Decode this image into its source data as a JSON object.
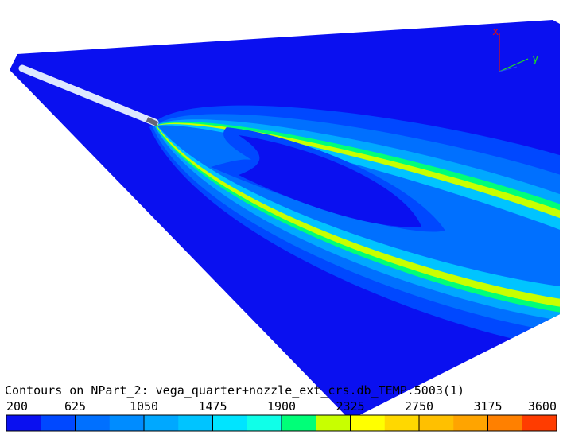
{
  "chart_data": {
    "type": "contour",
    "title": "Contours on NPart_2: vega_quarter+nozzle_ext_crs.db_TEMP.5003(1)",
    "axes_triad": {
      "x": "x",
      "y": "y"
    },
    "colorbar": {
      "clim": [
        200,
        3600
      ],
      "ticks": [
        200,
        625,
        1050,
        1475,
        1900,
        2325,
        2750,
        3175,
        3600
      ],
      "colors": [
        "#0a10f0",
        "#0048ff",
        "#0070ff",
        "#008cff",
        "#00a8ff",
        "#00c4ff",
        "#00e4ff",
        "#10ffe8",
        "#00ff78",
        "#c8ff00",
        "#ffff00",
        "#ffd800",
        "#ffc000",
        "#ffa400",
        "#ff8000",
        "#ff3c00"
      ]
    }
  }
}
